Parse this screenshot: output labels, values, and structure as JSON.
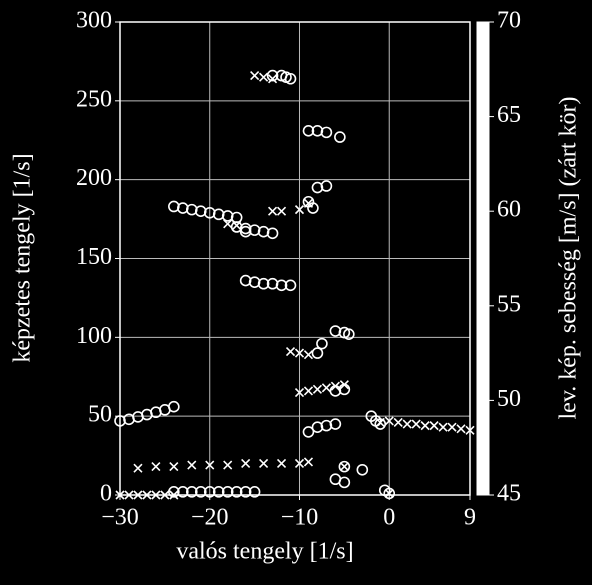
{
  "chart_data": {
    "type": "scatter",
    "x_label": "valós tengely [1/s]",
    "y_label": "képzetes tengely [1/s]",
    "colorbar_label": "lev. kép. sebesség [m/s] (zárt kör)",
    "xlim": [
      -30,
      9
    ],
    "ylim": [
      0,
      300
    ],
    "xticks": [
      {
        "value": -30,
        "label": "−30"
      },
      {
        "value": -20,
        "label": "−20"
      },
      {
        "value": -10,
        "label": "−10"
      },
      0,
      9
    ],
    "yticks": [
      0,
      50,
      100,
      150,
      200,
      250,
      300
    ],
    "colorbar_lim": [
      45,
      70
    ],
    "colorbar_ticks": [
      45,
      50,
      55,
      60,
      65,
      70
    ],
    "colorbar_color": "#ffffff",
    "grid": true,
    "series": [
      {
        "marker": "o",
        "color": "#ffffff",
        "x": [
          -24,
          -23,
          -22,
          -21,
          -20,
          -19,
          -18,
          -17,
          -16,
          -15,
          -30,
          -29,
          -28,
          -27,
          -26,
          -25,
          -24,
          -13,
          -12,
          -11.5,
          -11,
          -9,
          -8,
          -7,
          -5.5,
          -24,
          -23,
          -22,
          -21,
          -20,
          -19,
          -18,
          -17,
          -16,
          -17,
          -16,
          -15,
          -14,
          -13,
          -16,
          -15,
          -14,
          -13,
          -12,
          -11,
          -9,
          -8,
          -7,
          -8.5,
          -8,
          -7.5,
          -6,
          -5,
          -4.5,
          -6,
          -5,
          -9,
          -8,
          -7,
          -6,
          -2,
          -1.5,
          -1,
          -6,
          -5,
          -3,
          -0.5,
          0,
          -5
        ],
        "y": [
          2,
          2,
          2,
          2,
          2,
          2,
          2,
          2,
          2,
          2,
          47,
          48,
          49.5,
          51,
          52.5,
          54,
          56,
          266,
          266,
          265,
          264,
          231,
          231,
          230,
          227,
          183,
          182,
          181,
          180,
          179,
          178,
          177,
          176,
          167,
          170,
          169,
          168,
          167,
          166,
          136,
          135,
          134,
          134,
          133,
          133,
          186,
          195,
          196,
          182,
          90,
          96,
          104,
          103,
          102,
          66,
          67,
          40,
          43,
          44,
          45,
          50,
          47,
          45,
          10,
          8,
          16,
          3,
          1,
          18
        ]
      },
      {
        "marker": "x",
        "color": "#ffffff",
        "x": [
          -28,
          -26,
          -24,
          -22,
          -20,
          -18,
          -16,
          -14,
          -12,
          -10,
          -9,
          -30,
          -29,
          -28,
          -27,
          -26,
          -25,
          -24,
          -15,
          -14,
          -13,
          -18,
          -17,
          -13,
          -12,
          -10,
          -9,
          -11,
          -10,
          -9,
          -10,
          -9,
          -8,
          -7,
          -6,
          -5,
          -1,
          0,
          1,
          2,
          3,
          4,
          5,
          6,
          7,
          8,
          9,
          -5,
          0
        ],
        "y": [
          17,
          18,
          18,
          19,
          19,
          19,
          20,
          20,
          20,
          20,
          21,
          0,
          0,
          0,
          0,
          0,
          0,
          0,
          266,
          265,
          264,
          172,
          171,
          180,
          180,
          181,
          185,
          91,
          90,
          89,
          65,
          66,
          67,
          68,
          69,
          70,
          46,
          47,
          46,
          45,
          45,
          44,
          44,
          43,
          43,
          42,
          41,
          18,
          1
        ]
      }
    ]
  }
}
